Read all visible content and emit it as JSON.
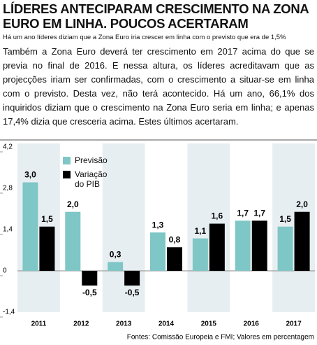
{
  "chart_data": {
    "type": "bar",
    "title": "LÍDERES ANTECIPARAM CRESCIMENTO NA ZONA EURO EM LINHA. POUCOS ACERTARAM",
    "subtitle": "Há um ano líderes diziam que a Zona Euro iria crescer em linha com o previsto que era de 1,5%",
    "text": "Também a Zona Euro deverá ter crescimento em 2017 acima do que se previa no final de 2016. E nessa altura, os líderes acreditavam que as projecções iriam ser confirmadas, com o crescimento a situar-se em linha com o previsto. Desta vez, não terá acontecido. Há um ano, 66,1% dos inquiridos diziam que o crescimento na Zona Euro seria em linha; e apenas 17,4% dizia que cresceria acima. Estes últimos acertaram.",
    "source": "Fontes: Comissão Europeia e FMI; Valores em percentagem",
    "categories": [
      "2011",
      "2012",
      "2013",
      "2014",
      "2015",
      "2016",
      "2017"
    ],
    "series": [
      {
        "name": "Previsão",
        "color": "#7fc6c6",
        "values": [
          3.0,
          2.0,
          0.3,
          1.3,
          1.1,
          1.7,
          1.5
        ],
        "value_labels": [
          "3,0",
          "2,0",
          "0,3",
          "1,3",
          "1,1",
          "1,7",
          "1,5"
        ]
      },
      {
        "name": "Variação do PIB",
        "color": "#000000",
        "values": [
          1.5,
          -0.5,
          -0.5,
          0.8,
          1.6,
          1.7,
          2.0
        ],
        "value_labels": [
          "1,5",
          "-0,5",
          "-0,5",
          "0,8",
          "1,6",
          "1,7",
          "2,0"
        ]
      }
    ],
    "ylim": [
      -1.4,
      4.2
    ],
    "yticks": [
      {
        "value": -1.4,
        "label": "-1,4"
      },
      0,
      {
        "value": 1.4,
        "label": "1,4"
      },
      {
        "value": 2.8,
        "label": "2,8"
      },
      {
        "value": 4.2,
        "label": "4,2"
      }
    ],
    "grid": false,
    "legend": "top-left"
  }
}
